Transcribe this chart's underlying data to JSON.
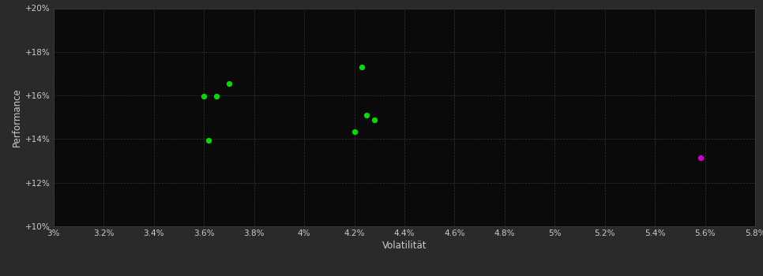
{
  "background_color": "#2a2a2a",
  "plot_bg_color": "#0a0a0a",
  "grid_color": "#404040",
  "text_color": "#cccccc",
  "xlabel": "Volatilität",
  "ylabel": "Performance",
  "xlim": [
    0.03,
    0.058
  ],
  "ylim": [
    0.1,
    0.2
  ],
  "xticks": [
    0.03,
    0.032,
    0.034,
    0.036,
    0.038,
    0.04,
    0.042,
    0.044,
    0.046,
    0.048,
    0.05,
    0.052,
    0.054,
    0.056,
    0.058
  ],
  "yticks": [
    0.1,
    0.12,
    0.14,
    0.16,
    0.18,
    0.2
  ],
  "xtick_labels": [
    "3%",
    "3.2%",
    "3.4%",
    "3.6%",
    "3.8%",
    "4%",
    "4.2%",
    "4.4%",
    "4.6%",
    "4.8%",
    "5%",
    "5.2%",
    "5.4%",
    "5.6%",
    "5.8%"
  ],
  "ytick_labels": [
    "+10%",
    "+12%",
    "+14%",
    "+16%",
    "+18%",
    "+20%"
  ],
  "green_points": [
    [
      0.036,
      0.1595
    ],
    [
      0.0365,
      0.1595
    ],
    [
      0.037,
      0.1655
    ],
    [
      0.0362,
      0.1395
    ],
    [
      0.0423,
      0.173
    ],
    [
      0.0425,
      0.151
    ],
    [
      0.0428,
      0.149
    ],
    [
      0.042,
      0.1435
    ]
  ],
  "magenta_points": [
    [
      0.0558,
      0.1315
    ]
  ],
  "point_color_green": "#00dd00",
  "point_color_magenta": "#cc00cc",
  "point_size": 18,
  "figsize": [
    9.66,
    3.5
  ],
  "dpi": 100
}
